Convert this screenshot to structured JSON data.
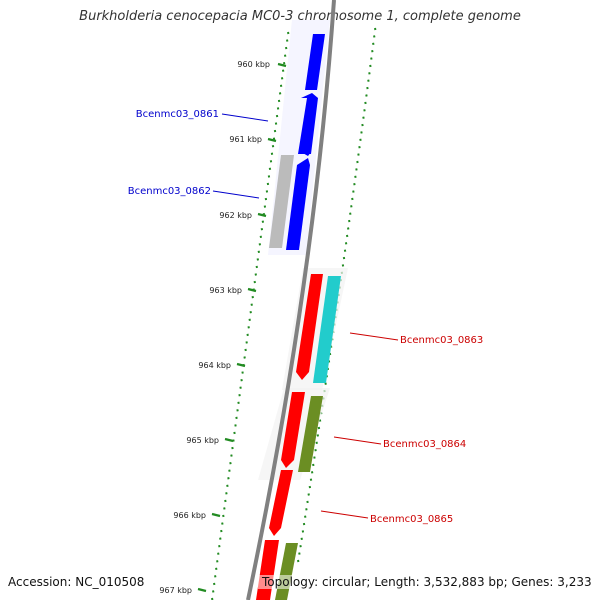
{
  "title": "Burkholderia cenocepacia MC0-3 chromosome 1, complete genome",
  "accession": "Accession: NC_010508",
  "topology": "Topology: circular; Length: 3,532,883 bp; Genes: 3,233",
  "ticks": [
    "960 kbp",
    "961 kbp",
    "962 kbp",
    "963 kbp",
    "964 kbp",
    "965 kbp",
    "966 kbp",
    "967 kbp"
  ],
  "gene_labels": {
    "g0861": "Bcenmc03_0861",
    "g0862": "Bcenmc03_0862",
    "g0863": "Bcenmc03_0863",
    "g0864": "Bcenmc03_0864",
    "g0865": "Bcenmc03_0865"
  },
  "colors": {
    "backbone": "#808080",
    "forward_cds": "#0000ff",
    "reverse_cds": "#ff0000",
    "pseudogene": "#bbbbbb",
    "cyan_feature": "#22cccc",
    "olive_feature": "#6b8e23",
    "tick_green": "#228b22",
    "label_blue": "#0000cc",
    "label_red": "#cc0000"
  }
}
